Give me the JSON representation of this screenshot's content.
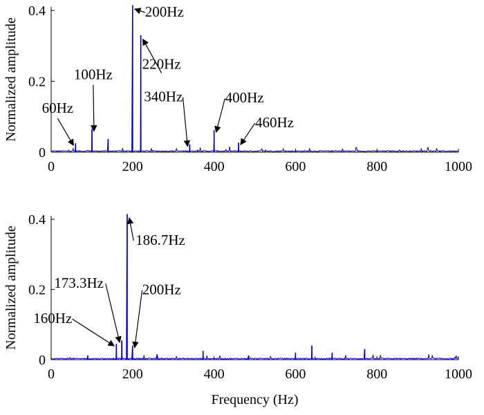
{
  "chart_data": [
    {
      "type": "line",
      "xlabel": "",
      "ylabel": "Normalized amplitude",
      "xlim": [
        0,
        1000
      ],
      "ylim": [
        0,
        0.41
      ],
      "xticks": [
        0,
        200,
        400,
        600,
        800,
        1000
      ],
      "xtick_labels": [
        "0",
        "200",
        "400",
        "600",
        "800",
        "1000"
      ],
      "yticks": [
        0,
        0.2,
        0.4
      ],
      "ytick_labels": [
        "0",
        "0.2",
        "0.4"
      ],
      "line_color": "#0000cc",
      "peaks": [
        {
          "x": 60,
          "y": 0.025
        },
        {
          "x": 100,
          "y": 0.065
        },
        {
          "x": 140,
          "y": 0.037
        },
        {
          "x": 200,
          "y": 0.415
        },
        {
          "x": 220,
          "y": 0.33
        },
        {
          "x": 340,
          "y": 0.022
        },
        {
          "x": 400,
          "y": 0.062
        },
        {
          "x": 460,
          "y": 0.027
        }
      ],
      "annotations": [
        {
          "label": "60Hz",
          "x": 60,
          "y": 0.025
        },
        {
          "label": "100Hz",
          "x": 100,
          "y": 0.065
        },
        {
          "label": "200Hz",
          "x": 200,
          "y": 0.41
        },
        {
          "label": "220Hz",
          "x": 220,
          "y": 0.325
        },
        {
          "label": "340Hz",
          "x": 340,
          "y": 0.022
        },
        {
          "label": "400Hz",
          "x": 400,
          "y": 0.062
        },
        {
          "label": "460Hz",
          "x": 460,
          "y": 0.027
        }
      ]
    },
    {
      "type": "line",
      "xlabel": "Frequency (Hz)",
      "ylabel": "Normalized amplitude",
      "xlim": [
        0,
        1000
      ],
      "ylim": [
        0,
        0.41
      ],
      "xticks": [
        0,
        200,
        400,
        600,
        800,
        1000
      ],
      "xtick_labels": [
        "0",
        "200",
        "400",
        "600",
        "800",
        "1000"
      ],
      "yticks": [
        0,
        0.2,
        0.4
      ],
      "ytick_labels": [
        "0",
        "0.2",
        "0.4"
      ],
      "line_color": "#0000cc",
      "peaks": [
        {
          "x": 90,
          "y": 0.012
        },
        {
          "x": 160,
          "y": 0.045
        },
        {
          "x": 173.3,
          "y": 0.055
        },
        {
          "x": 186.7,
          "y": 0.415
        },
        {
          "x": 200,
          "y": 0.04
        },
        {
          "x": 260,
          "y": 0.015
        },
        {
          "x": 373,
          "y": 0.025
        },
        {
          "x": 485,
          "y": 0.012
        },
        {
          "x": 600,
          "y": 0.02
        },
        {
          "x": 640,
          "y": 0.04
        },
        {
          "x": 690,
          "y": 0.02
        },
        {
          "x": 770,
          "y": 0.03
        }
      ],
      "annotations": [
        {
          "label": "160Hz",
          "x": 160,
          "y": 0.045
        },
        {
          "label": "173.3Hz",
          "x": 173.3,
          "y": 0.055
        },
        {
          "label": "186.7Hz",
          "x": 186.7,
          "y": 0.41
        },
        {
          "label": "200Hz",
          "x": 200,
          "y": 0.04
        }
      ]
    }
  ]
}
